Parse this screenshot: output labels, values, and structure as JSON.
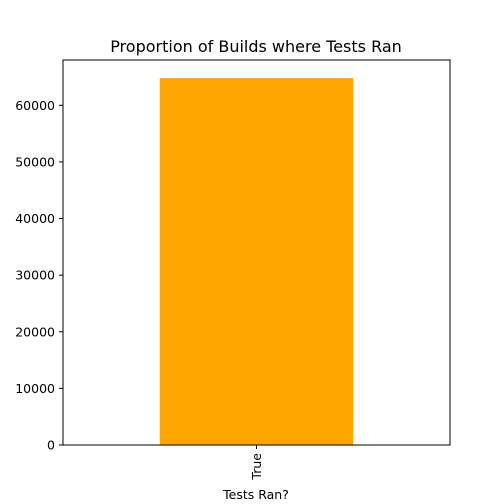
{
  "chart_data": {
    "type": "bar",
    "title": "Proportion of Builds where Tests Ran",
    "xlabel": "Tests Ran?",
    "ylabel": "",
    "categories": [
      "True"
    ],
    "values": [
      64800
    ],
    "ylim": [
      0,
      68000
    ],
    "yticks": [
      0,
      10000,
      20000,
      30000,
      40000,
      50000,
      60000
    ],
    "ytick_labels": [
      "0",
      "10000",
      "20000",
      "30000",
      "40000",
      "50000",
      "60000"
    ],
    "xtick_labels": [
      "True"
    ],
    "bar_color": "#ffa500",
    "grid": false,
    "legend": "none"
  }
}
